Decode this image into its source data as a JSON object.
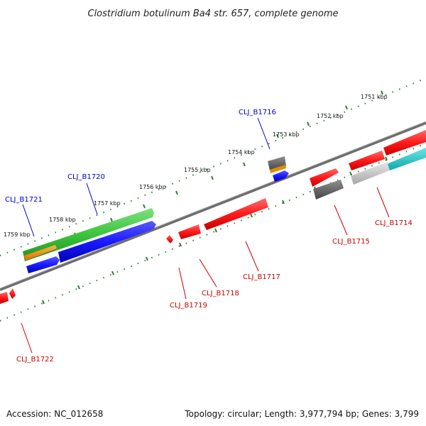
{
  "title": "Clostridium botulinum Ba4 str. 657, complete genome",
  "footer": {
    "accession": "Accession: NC_012658",
    "summary": "Topology: circular; Length: 3,977,794 bp; Genes: 3,799"
  },
  "scale_labels": [
    "1751 kbp",
    "1752 kbp",
    "1753 kbp",
    "1754 kbp",
    "1755 kbp",
    "1756 kbp",
    "1757 kbp",
    "1758 kbp",
    "1759 kbp"
  ],
  "gene_labels": {
    "forward": [
      "CLJ_B1716",
      "CLJ_B1720",
      "CLJ_B1721"
    ],
    "reverse": [
      "CLJ_B1714",
      "CLJ_B1715",
      "CLJ_B1717",
      "CLJ_B1718",
      "CLJ_B1719",
      "CLJ_B1722"
    ]
  },
  "colors": {
    "forward_label": "#0000cc",
    "reverse_label": "#cc0000",
    "backbone": "#777777",
    "tick": "#2e7d32",
    "red_gene": "#ff1a1a",
    "blue_gene": "#1a1aff",
    "green_gene": "#3cc43c",
    "orange_gene": "#ff8c00",
    "gray_gene": "#666666",
    "lightgray_gene": "#c8c8c8",
    "cyan_gene": "#1ac8c8"
  }
}
